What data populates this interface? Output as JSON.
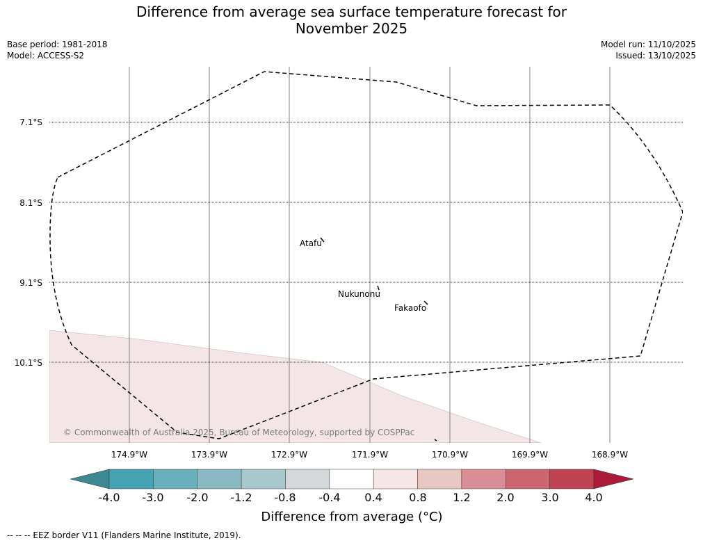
{
  "title": {
    "line1": "Difference from average sea surface temperature forecast for",
    "line2": "November 2025"
  },
  "header": {
    "base_period": "Base period: 1981-2018",
    "model": "Model: ACCESS-S2",
    "model_run": "Model run: 11/10/2025",
    "issued": "Issued: 13/10/2025"
  },
  "map": {
    "lat_labels": [
      "7.1°S",
      "8.1°S",
      "9.1°S",
      "10.1°S"
    ],
    "lon_labels": [
      "174.9°W",
      "173.9°W",
      "172.9°W",
      "171.9°W",
      "170.9°W",
      "169.9°W",
      "168.9°W"
    ],
    "places": [
      "Atafu",
      "Nukunonu",
      "Fakaofo"
    ],
    "copyright": "© Commonwealth of Australia 2025, Bureau of Meteorology, supported by COSPPac",
    "anomaly_fill_color": "#f4e6e6",
    "eez_color": "#000000"
  },
  "colorbar": {
    "ticks": [
      "-4.0",
      "-3.0",
      "-2.0",
      "-1.2",
      "-0.8",
      "-0.4",
      "0.4",
      "0.8",
      "1.2",
      "2.0",
      "3.0",
      "4.0"
    ],
    "colors": [
      "#3d8891",
      "#46a3b3",
      "#6aafbd",
      "#8ab8c3",
      "#a8c8cd",
      "#d3d8da",
      "#ffffff",
      "#f6e7e6",
      "#e9c7c3",
      "#d98e95",
      "#cc6670",
      "#c04253",
      "#ab1a38"
    ],
    "label": "Difference from average (°C)"
  },
  "footer": {
    "legend": "--  --  -- EEZ border V11 (Flanders Marine Institute, 2019)."
  }
}
